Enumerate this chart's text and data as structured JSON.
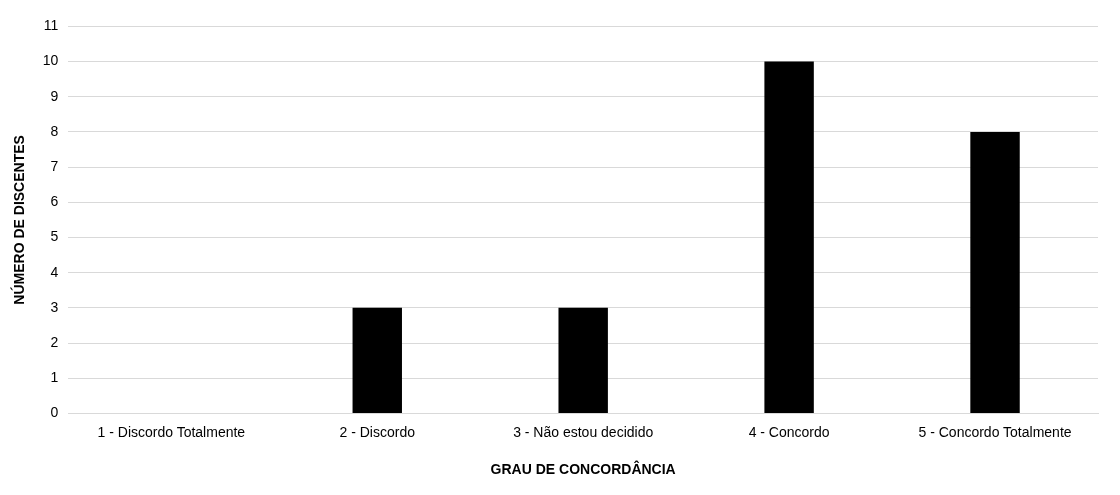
{
  "chart_data": {
    "type": "bar",
    "xlabel": "GRAU DE CONCORDÂNCIA",
    "ylabel": "NÚMERO DE DISCENTES",
    "categories": [
      "1 - Discordo Totalmente",
      "2 - Discordo",
      "3 - Não estou decidido",
      "4 - Concordo",
      "5 - Concordo Totalmente"
    ],
    "values": [
      0,
      3,
      3,
      10,
      8
    ],
    "color": "#000000",
    "ylim": [
      0,
      11
    ],
    "yticks": [
      0,
      1,
      2,
      3,
      4,
      5,
      6,
      7,
      8,
      9,
      10,
      11
    ],
    "grid": "y",
    "legend": false
  }
}
